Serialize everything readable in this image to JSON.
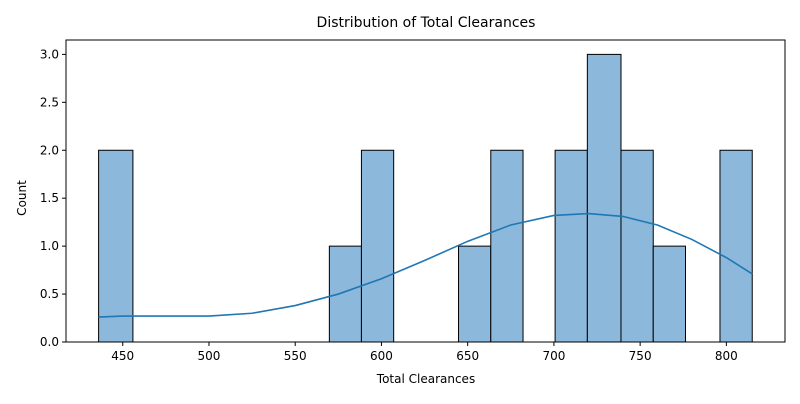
{
  "chart_data": {
    "type": "histogram",
    "title": "Distribution of Total Clearances",
    "xlabel": "Total Clearances",
    "ylabel": "Count",
    "xlim": [
      417.1,
      834.0
    ],
    "ylim": [
      0,
      3.15
    ],
    "xticks": [
      450,
      500,
      550,
      600,
      650,
      700,
      750,
      800
    ],
    "xtick_labels": [
      "450",
      "500",
      "550",
      "600",
      "650",
      "700",
      "750",
      "800"
    ],
    "yticks": [
      0,
      0.5,
      1.0,
      1.5,
      2.0,
      2.5,
      3.0
    ],
    "ytick_labels": [
      "0.0",
      "0.5",
      "1.0",
      "1.5",
      "2.0",
      "2.5",
      "3.0"
    ],
    "bins": [
      {
        "start": 436.0,
        "end": 455.9,
        "count": 2
      },
      {
        "start": 569.8,
        "end": 588.4,
        "count": 1
      },
      {
        "start": 588.4,
        "end": 607.1,
        "count": 2
      },
      {
        "start": 644.7,
        "end": 663.4,
        "count": 1
      },
      {
        "start": 663.4,
        "end": 682.1,
        "count": 2
      },
      {
        "start": 700.7,
        "end": 719.4,
        "count": 2
      },
      {
        "start": 719.4,
        "end": 738.9,
        "count": 3
      },
      {
        "start": 738.9,
        "end": 757.6,
        "count": 2
      },
      {
        "start": 757.6,
        "end": 776.3,
        "count": 1
      },
      {
        "start": 796.3,
        "end": 815.0,
        "count": 2
      }
    ],
    "kde": {
      "x": [
        436,
        450,
        475,
        500,
        525,
        550,
        575,
        600,
        625,
        650,
        675,
        700,
        720,
        740,
        760,
        780,
        800,
        815
      ],
      "y": [
        0.26,
        0.27,
        0.27,
        0.27,
        0.3,
        0.38,
        0.5,
        0.66,
        0.85,
        1.05,
        1.22,
        1.32,
        1.34,
        1.31,
        1.22,
        1.07,
        0.88,
        0.71
      ]
    },
    "colors": {
      "bar_fill": "#8cb8dc",
      "bar_edge": "#000000",
      "kde_line": "#1f77b4"
    },
    "grid": false,
    "legend": false
  }
}
